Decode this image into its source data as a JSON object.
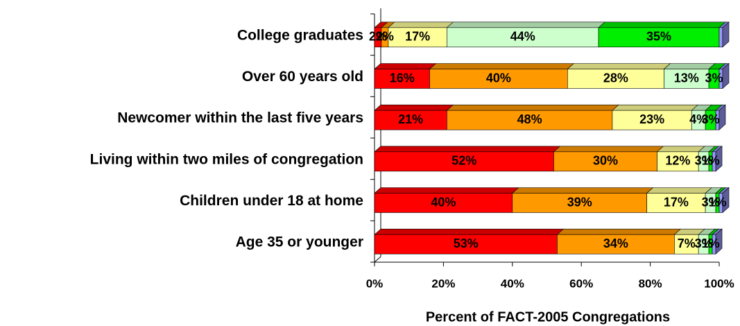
{
  "chart_data": {
    "type": "stacked-bar-3d",
    "xlabel": "Percent of FACT-2005 Congregations",
    "categories": [
      "College graduates",
      "Over 60 years old",
      "Newcomer within the last five years",
      "Living within two miles of congregation",
      "Children under 18 at home",
      "Age 35 or younger"
    ],
    "series": [
      {
        "color": "#ff0000",
        "values": [
          2,
          16,
          21,
          52,
          40,
          53
        ],
        "value_labels": [
          "2%",
          "16%",
          "21%",
          "52%",
          "40%",
          "53%"
        ]
      },
      {
        "color": "#ff9900",
        "values": [
          2,
          40,
          48,
          30,
          39,
          34
        ],
        "value_labels": [
          "2%",
          "40%",
          "48%",
          "30%",
          "39%",
          "34%"
        ]
      },
      {
        "color": "#ffff99",
        "values": [
          17,
          28,
          23,
          12,
          17,
          7
        ],
        "value_labels": [
          "17%",
          "28%",
          "23%",
          "12%",
          "17%",
          "7%"
        ]
      },
      {
        "color": "#ccffcc",
        "values": [
          44,
          13,
          4,
          3,
          3,
          3
        ],
        "value_labels": [
          "44%",
          "13%",
          "4%",
          "3%",
          "3%",
          "3%"
        ]
      },
      {
        "color": "#00ee00",
        "values": [
          35,
          3,
          3,
          1,
          1,
          1
        ],
        "value_labels": [
          "35%",
          "3%",
          "3%",
          "1%",
          "1%",
          "1%"
        ]
      },
      {
        "color": "#9999ff",
        "values": [
          1,
          1,
          1,
          1,
          1,
          1
        ]
      }
    ],
    "xlim": [
      0,
      100
    ],
    "xticks": [
      {
        "value": 0,
        "label": "0%"
      },
      {
        "value": 20,
        "label": "20%"
      },
      {
        "value": 40,
        "label": "40%"
      },
      {
        "value": 60,
        "label": "60%"
      },
      {
        "value": 80,
        "label": "80%"
      },
      {
        "value": 100,
        "label": "100%"
      }
    ]
  }
}
